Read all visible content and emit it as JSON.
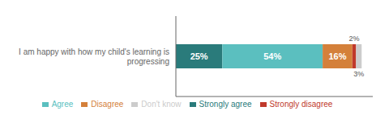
{
  "chart_data": {
    "type": "bar",
    "orientation": "horizontal",
    "stacked": true,
    "categories": [
      "I am happy with how my child's learning is\nprogressing"
    ],
    "series": [
      {
        "name": "Strongly agree",
        "color": "#2a7b7b",
        "values": [
          25
        ],
        "value_labels": [
          "25%"
        ]
      },
      {
        "name": "Agree",
        "color": "#5bbfbf",
        "values": [
          54
        ],
        "value_labels": [
          "54%"
        ]
      },
      {
        "name": "Disagree",
        "color": "#d4803a",
        "values": [
          16
        ],
        "value_labels": [
          "16%"
        ]
      },
      {
        "name": "Strongly disagree",
        "color": "#c0392b",
        "values": [
          2
        ],
        "value_labels": [
          "2%"
        ]
      },
      {
        "name": "Don't know",
        "color": "#cccccc",
        "values": [
          3
        ],
        "value_labels": [
          "3%"
        ]
      }
    ],
    "xlim": [
      0,
      106
    ],
    "data_labels": true,
    "tick_labels": "y",
    "grid": false,
    "legend": "bottom"
  }
}
